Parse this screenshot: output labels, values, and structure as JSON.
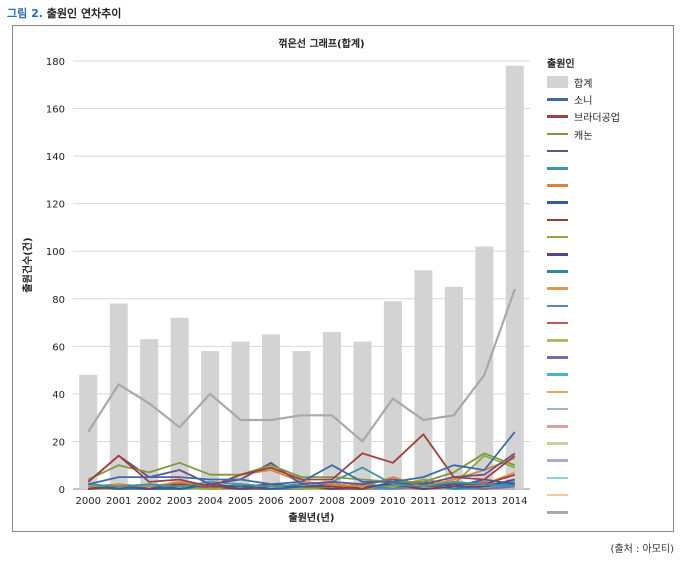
{
  "caption": {
    "label": "그림 2.",
    "text": "출원인 연차추이"
  },
  "source": "(출처 : 아모티)",
  "chart_data": {
    "type": "bar",
    "title": "꺾은선 그래프(합계)",
    "xlabel": "출원년(년)",
    "ylabel": "출원건수(건)",
    "ylim": [
      0,
      180
    ],
    "yticks": [
      0,
      20,
      40,
      60,
      80,
      100,
      120,
      140,
      160,
      180
    ],
    "grid": true,
    "legend_title": "출원인",
    "legend_position": "right",
    "categories": [
      "2000",
      "2001",
      "2002",
      "2003",
      "2004",
      "2005",
      "2006",
      "2007",
      "2008",
      "2009",
      "2010",
      "2011",
      "2012",
      "2013",
      "2014"
    ],
    "bar_series": {
      "name": "합계",
      "color": "#d3d3d3",
      "values": [
        48,
        78,
        63,
        72,
        58,
        62,
        65,
        58,
        66,
        62,
        79,
        92,
        85,
        102,
        178
      ]
    },
    "overlay_line": {
      "color": "#a9a9a9",
      "values": [
        24,
        44,
        36,
        26,
        40,
        29,
        29,
        31,
        31,
        20,
        38,
        29,
        31,
        48,
        84
      ]
    },
    "series": [
      {
        "name": "소니",
        "color": "#3d6ba8",
        "values": [
          2,
          5,
          5,
          5,
          4,
          4,
          2,
          3,
          10,
          3,
          3,
          5,
          10,
          8,
          24
        ]
      },
      {
        "name": "브라더공업",
        "color": "#a0403d",
        "values": [
          3,
          14,
          3,
          4,
          1,
          6,
          9,
          4,
          4,
          15,
          11,
          23,
          5,
          4,
          14
        ]
      },
      {
        "name": "캐논",
        "color": "#7e9a3d",
        "values": [
          4,
          10,
          7,
          11,
          6,
          6,
          10,
          5,
          5,
          4,
          3,
          3,
          7,
          15,
          10
        ]
      },
      {
        "name": "",
        "color": "#6a4f8f",
        "values": [
          3,
          14,
          5,
          8,
          2,
          4,
          11,
          2,
          3,
          2,
          4,
          2,
          5,
          6,
          15
        ]
      },
      {
        "name": "",
        "color": "#3a97aa",
        "values": [
          2,
          1,
          2,
          1,
          3,
          2,
          1,
          2,
          3,
          9,
          2,
          1,
          3,
          2,
          1
        ]
      },
      {
        "name": "",
        "color": "#d9863a",
        "values": [
          1,
          2,
          1,
          3,
          1,
          6,
          8,
          3,
          2,
          1,
          5,
          1,
          4,
          8,
          13
        ]
      },
      {
        "name": "",
        "color": "#3060a0",
        "values": [
          1,
          0,
          1,
          0,
          2,
          1,
          0,
          1,
          2,
          1,
          2,
          3,
          1,
          4,
          2
        ]
      },
      {
        "name": "",
        "color": "#9a3a38",
        "values": [
          0,
          1,
          1,
          2,
          1,
          1,
          2,
          1,
          1,
          0,
          3,
          1,
          2,
          2,
          6
        ]
      },
      {
        "name": "",
        "color": "#8eab42",
        "values": [
          1,
          0,
          2,
          1,
          0,
          2,
          1,
          0,
          1,
          2,
          1,
          4,
          2,
          14,
          9
        ]
      },
      {
        "name": "",
        "color": "#5a447f",
        "values": [
          0,
          1,
          0,
          1,
          1,
          0,
          1,
          1,
          0,
          1,
          2,
          0,
          1,
          1,
          4
        ]
      },
      {
        "name": "",
        "color": "#2f8a9c",
        "values": [
          1,
          1,
          0,
          0,
          1,
          1,
          0,
          1,
          2,
          1,
          1,
          2,
          0,
          1,
          3
        ]
      },
      {
        "name": "",
        "color": "#e39a4a",
        "values": [
          0,
          0,
          1,
          1,
          0,
          0,
          1,
          0,
          1,
          0,
          2,
          1,
          1,
          2,
          7
        ]
      },
      {
        "name": "",
        "color": "#5b84bf",
        "values": [
          1,
          0,
          0,
          1,
          0,
          1,
          0,
          0,
          1,
          1,
          0,
          1,
          2,
          1,
          2
        ]
      },
      {
        "name": "",
        "color": "#c25a57",
        "values": [
          0,
          1,
          0,
          0,
          1,
          0,
          0,
          1,
          0,
          0,
          1,
          0,
          1,
          3,
          1
        ]
      },
      {
        "name": "",
        "color": "#a6bf6a",
        "values": [
          0,
          0,
          1,
          0,
          0,
          1,
          1,
          0,
          0,
          1,
          0,
          1,
          0,
          1,
          2
        ]
      },
      {
        "name": "",
        "color": "#7f6aa6",
        "values": [
          0,
          0,
          0,
          1,
          0,
          0,
          0,
          1,
          0,
          0,
          1,
          0,
          1,
          0,
          1
        ]
      },
      {
        "name": "",
        "color": "#48b5c4",
        "values": [
          1,
          0,
          0,
          0,
          1,
          0,
          0,
          0,
          1,
          0,
          0,
          1,
          0,
          0,
          2
        ]
      },
      {
        "name": "",
        "color": "#f0a45a",
        "values": [
          0,
          0,
          0,
          0,
          0,
          1,
          0,
          0,
          0,
          1,
          0,
          0,
          1,
          1,
          1
        ]
      },
      {
        "name": "",
        "color": "#9eb4d6",
        "values": [
          0,
          0,
          0,
          0,
          0,
          0,
          1,
          0,
          0,
          0,
          0,
          1,
          0,
          0,
          1
        ]
      },
      {
        "name": "",
        "color": "#d9a09e",
        "values": [
          0,
          0,
          0,
          0,
          0,
          0,
          0,
          0,
          0,
          1,
          0,
          0,
          0,
          1,
          0
        ]
      },
      {
        "name": "",
        "color": "#c4d49e",
        "values": [
          0,
          0,
          0,
          0,
          0,
          0,
          0,
          0,
          0,
          0,
          1,
          0,
          0,
          0,
          1
        ]
      },
      {
        "name": "",
        "color": "#b3a8c8",
        "values": [
          0,
          0,
          0,
          0,
          0,
          0,
          0,
          0,
          0,
          0,
          0,
          0,
          1,
          0,
          0
        ]
      },
      {
        "name": "",
        "color": "#8fd0da",
        "values": [
          0,
          0,
          0,
          0,
          0,
          0,
          0,
          0,
          0,
          0,
          0,
          0,
          0,
          0,
          1
        ]
      },
      {
        "name": "",
        "color": "#f5c79a",
        "values": [
          0,
          0,
          0,
          0,
          0,
          0,
          0,
          0,
          0,
          0,
          0,
          0,
          0,
          0,
          0
        ]
      }
    ]
  }
}
